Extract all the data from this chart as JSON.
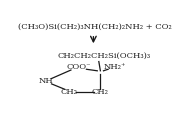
{
  "top_text": "(CH₃O)Si(CH₂)₃NH(CH₂)₂NH₂ + CO₂",
  "side_chain": "CH₂CH₂CH₂Si(OCH₃)₃",
  "coo_label": "COO⁻",
  "nh2_label": "NH₂⁺",
  "nh_label": "NH",
  "ch2_left": "CH₂",
  "ch2_right": "CH₂",
  "dash_label": "—",
  "bg_color": "#ffffff",
  "text_color": "#1a1a1a",
  "font_size": 6.0
}
